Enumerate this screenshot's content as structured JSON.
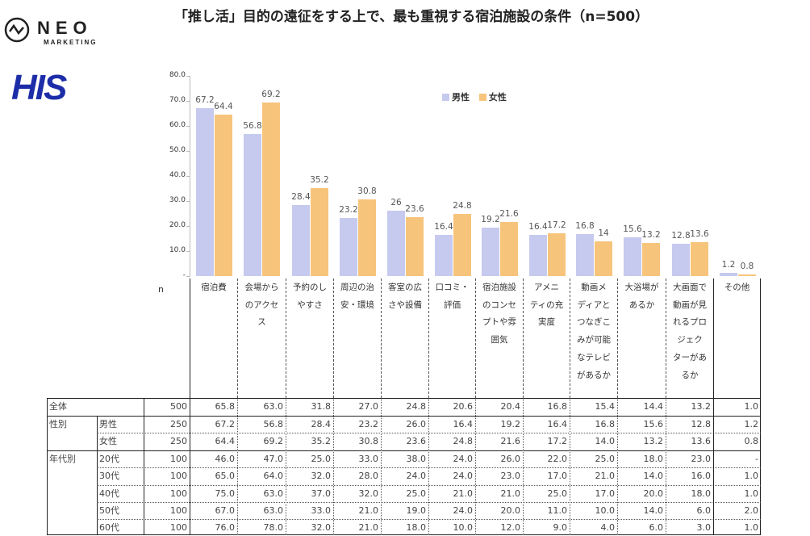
{
  "title": "「推し活」目的の遠征をする上で、最も重視する宿泊施設の条件（n=500）",
  "logos": {
    "neo": "NEO",
    "neo_sub": "MARKETING",
    "his": "HIS"
  },
  "colors": {
    "male": "#c6caef",
    "female": "#f7c47c"
  },
  "chart_data": {
    "type": "bar",
    "title": "「推し活」目的の遠征をする上で、最も重視する宿泊施設の条件（n=500）",
    "ylim": [
      0,
      80
    ],
    "yticks": [
      "80.0",
      "70.0",
      "60.0",
      "50.0",
      "40.0",
      "30.0",
      "20.0",
      "10.0",
      "-"
    ],
    "legend_position": "top-right",
    "categories": [
      "宿泊費",
      "会場からのアクセス",
      "予約のしやすさ",
      "周辺の治安・環境",
      "客室の広さや設備",
      "口コミ・評価",
      "宿泊施設のコンセプトや雰囲気",
      "アメニティの充実度",
      "動画メディアとつなぎこみが可能なテレビがあるか",
      "大浴場があるか",
      "大画面で動画が見れるプロジェクターがあるか",
      "その他"
    ],
    "series": [
      {
        "name": "男性",
        "values": [
          67.2,
          56.8,
          28.4,
          23.2,
          26.0,
          16.4,
          19.2,
          16.4,
          16.8,
          15.6,
          12.8,
          1.2
        ]
      },
      {
        "name": "女性",
        "values": [
          64.4,
          69.2,
          35.2,
          30.8,
          23.6,
          24.8,
          21.6,
          17.2,
          14.0,
          13.2,
          13.6,
          0.8
        ]
      }
    ]
  },
  "table": {
    "n_label": "n",
    "headers": [
      [
        "宿泊費"
      ],
      [
        "会場から",
        "のアクセ",
        "ス"
      ],
      [
        "予約のし",
        "やすさ"
      ],
      [
        "周辺の治",
        "安・環境"
      ],
      [
        "客室の広",
        "さや設備"
      ],
      [
        "口コミ・",
        "評価"
      ],
      [
        "宿泊施設",
        "のコンセ",
        "プトや雰",
        "囲気"
      ],
      [
        "アメニ",
        "ティの充",
        "実度"
      ],
      [
        "動画メ",
        "ディアと",
        "つなぎこ",
        "みが可能",
        "なテレビ",
        "があるか"
      ],
      [
        "大浴場が",
        "あるか"
      ],
      [
        "大画面で",
        "動画が見",
        "れるプロ",
        "ジェク",
        "ターがあ",
        "るか"
      ],
      [
        "その他"
      ]
    ],
    "rows": [
      {
        "group": "全体",
        "sub": "",
        "n": "500",
        "values": [
          "65.8",
          "63.0",
          "31.8",
          "27.0",
          "24.8",
          "20.6",
          "20.4",
          "16.8",
          "15.4",
          "14.4",
          "13.2",
          "1.0"
        ]
      },
      {
        "group": "性別",
        "sub": "男性",
        "n": "250",
        "values": [
          "67.2",
          "56.8",
          "28.4",
          "23.2",
          "26.0",
          "16.4",
          "19.2",
          "16.4",
          "16.8",
          "15.6",
          "12.8",
          "1.2"
        ]
      },
      {
        "group": "",
        "sub": "女性",
        "n": "250",
        "values": [
          "64.4",
          "69.2",
          "35.2",
          "30.8",
          "23.6",
          "24.8",
          "21.6",
          "17.2",
          "14.0",
          "13.2",
          "13.6",
          "0.8"
        ]
      },
      {
        "group": "年代別",
        "sub": "20代",
        "n": "100",
        "values": [
          "46.0",
          "47.0",
          "25.0",
          "33.0",
          "38.0",
          "24.0",
          "26.0",
          "22.0",
          "25.0",
          "18.0",
          "23.0",
          "-"
        ]
      },
      {
        "group": "",
        "sub": "30代",
        "n": "100",
        "values": [
          "65.0",
          "64.0",
          "32.0",
          "28.0",
          "24.0",
          "24.0",
          "23.0",
          "17.0",
          "21.0",
          "14.0",
          "16.0",
          "1.0"
        ]
      },
      {
        "group": "",
        "sub": "40代",
        "n": "100",
        "values": [
          "75.0",
          "63.0",
          "37.0",
          "32.0",
          "25.0",
          "21.0",
          "21.0",
          "25.0",
          "17.0",
          "20.0",
          "18.0",
          "1.0"
        ]
      },
      {
        "group": "",
        "sub": "50代",
        "n": "100",
        "values": [
          "67.0",
          "63.0",
          "33.0",
          "21.0",
          "19.0",
          "24.0",
          "20.0",
          "11.0",
          "10.0",
          "14.0",
          "6.0",
          "2.0"
        ]
      },
      {
        "group": "",
        "sub": "60代",
        "n": "100",
        "values": [
          "76.0",
          "78.0",
          "32.0",
          "21.0",
          "18.0",
          "10.0",
          "12.0",
          "9.0",
          "4.0",
          "6.0",
          "3.0",
          "1.0"
        ]
      }
    ]
  }
}
